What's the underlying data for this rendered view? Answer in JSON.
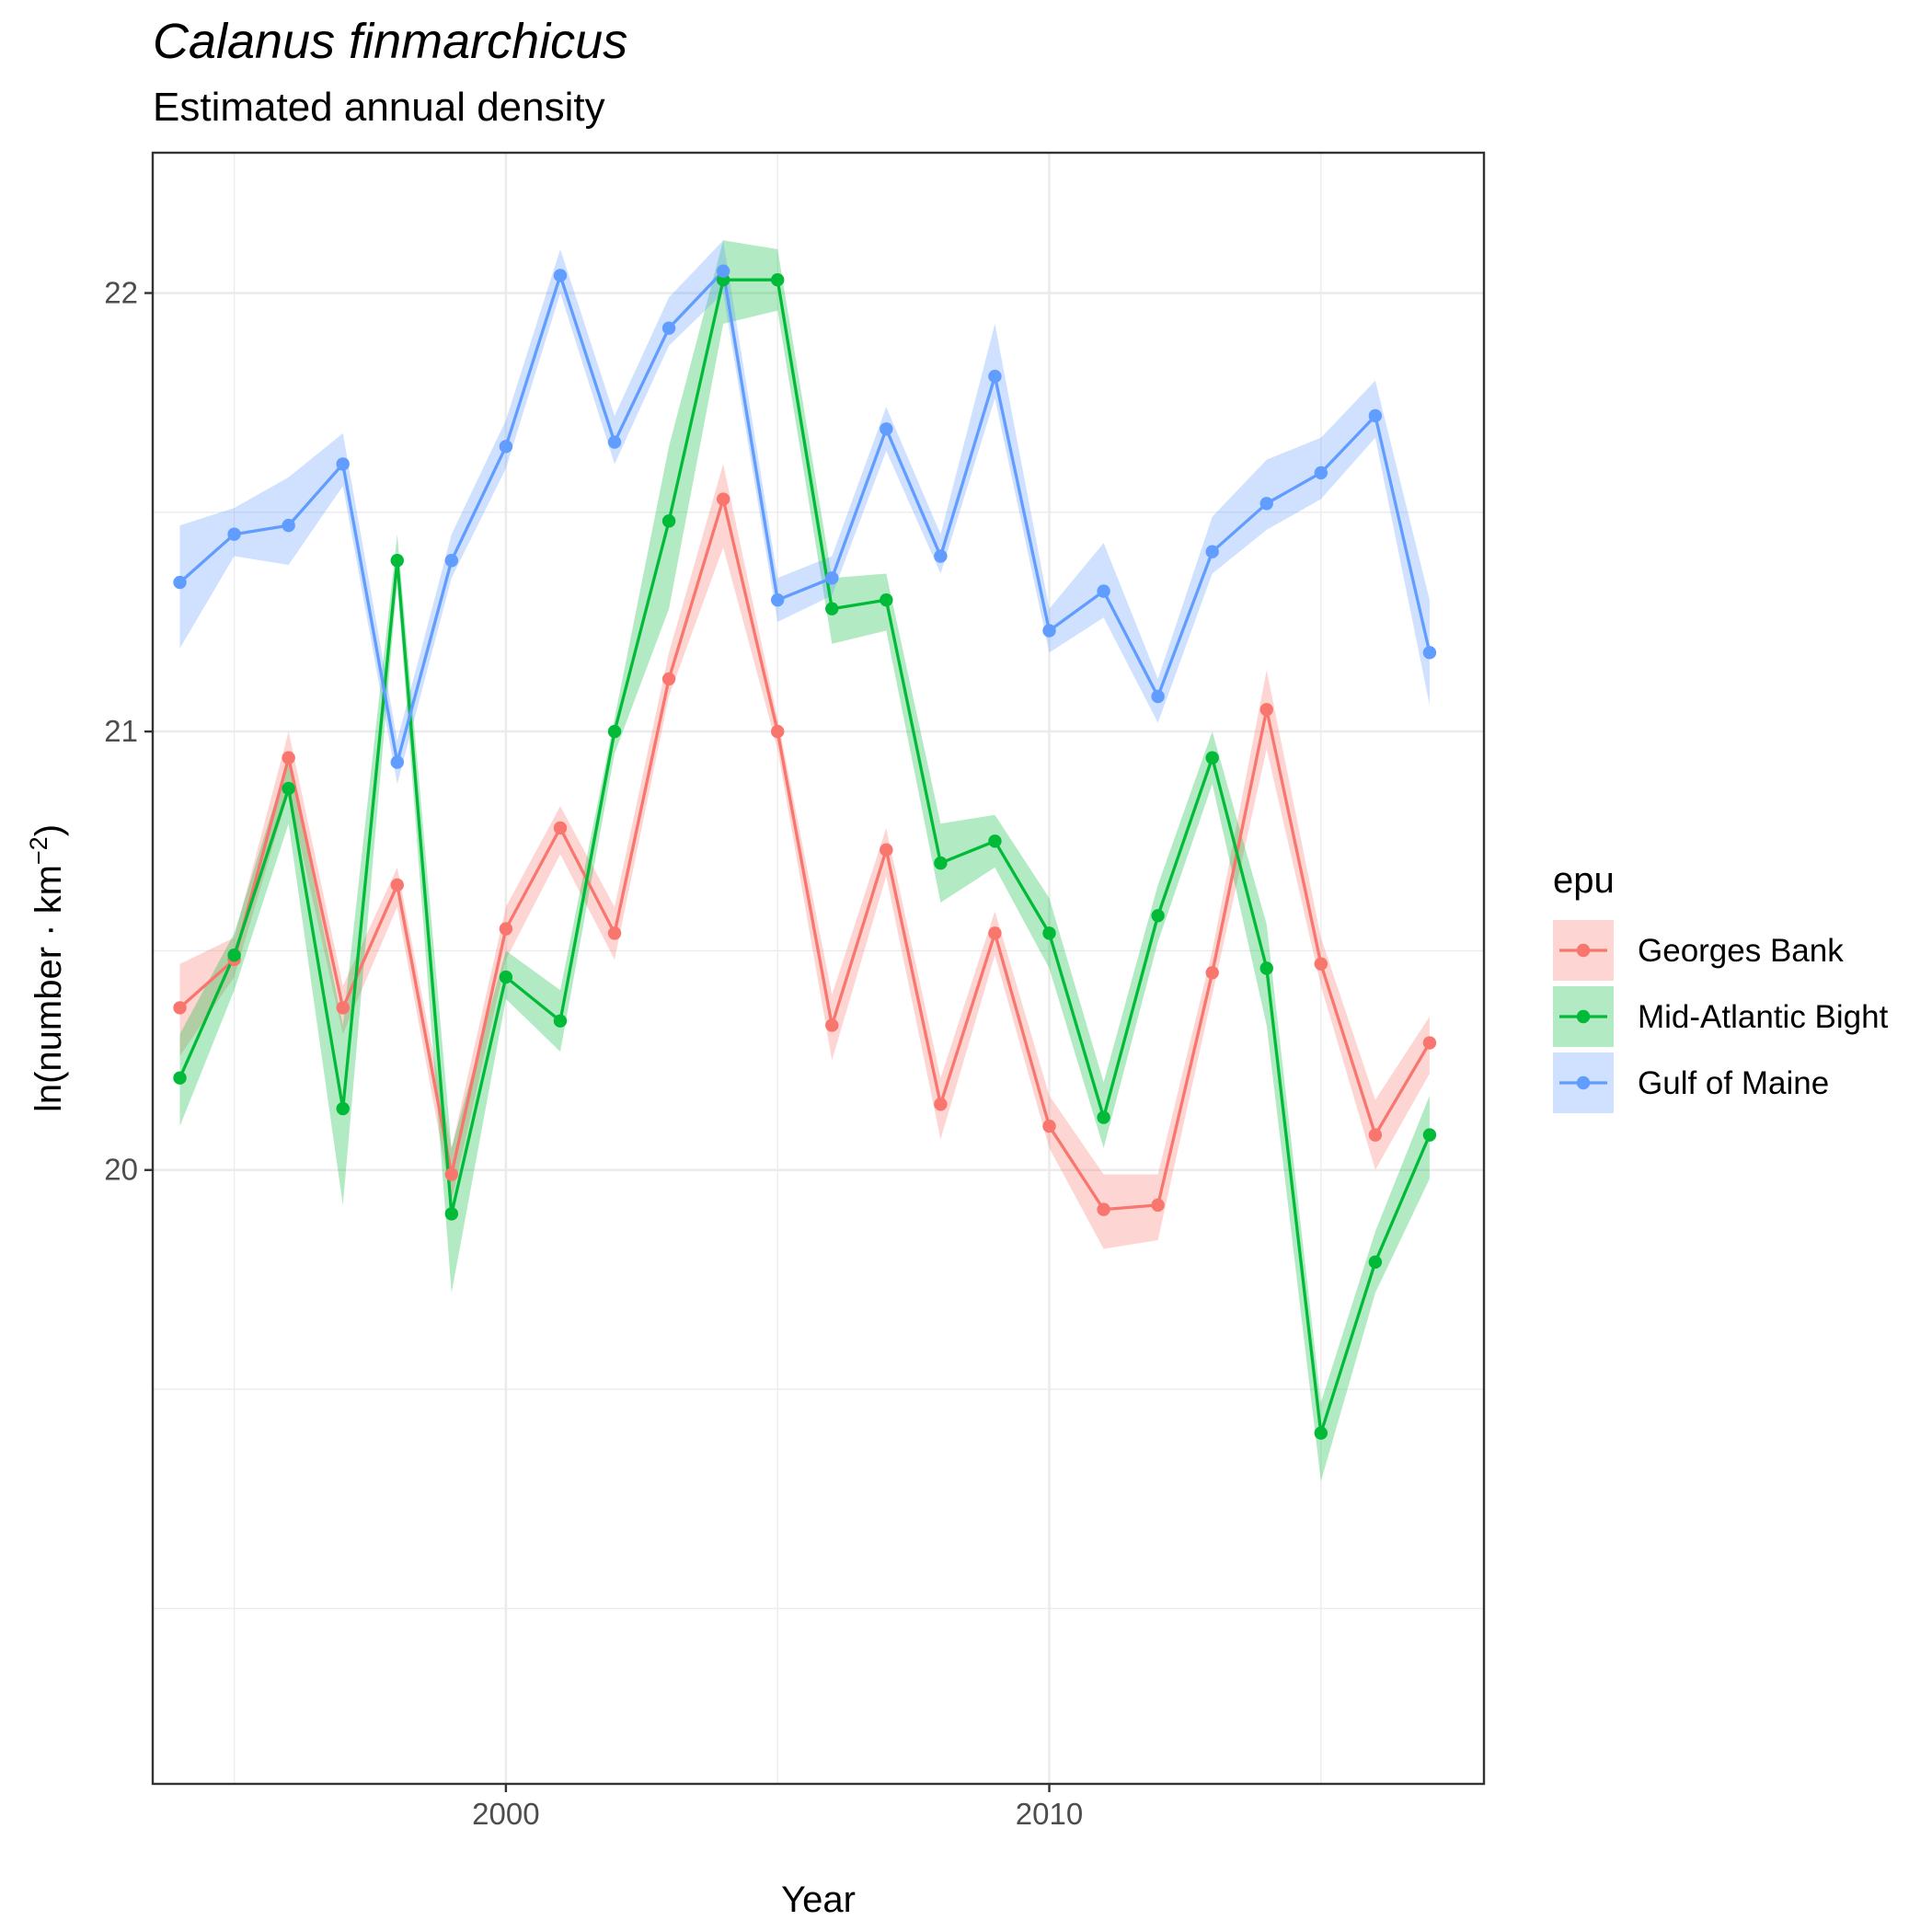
{
  "chart_data": {
    "type": "line",
    "title": "Calanus finmarchicus",
    "subtitle": "Estimated annual density",
    "xlabel": "Year",
    "ylabel_main": "ln(number · km",
    "ylabel_sup": "−2",
    "ylabel_end": ")",
    "xlim": [
      1993.5,
      2018.0
    ],
    "ylim": [
      18.6,
      22.32
    ],
    "x_ticks": [
      2000,
      2010
    ],
    "y_ticks": [
      20,
      21,
      22
    ],
    "legend_title": "epu",
    "legend_position": "right",
    "grid": true,
    "x": [
      1994,
      1995,
      1996,
      1997,
      1998,
      1999,
      2000,
      2001,
      2002,
      2003,
      2004,
      2005,
      2006,
      2007,
      2008,
      2009,
      2010,
      2011,
      2012,
      2013,
      2014,
      2015,
      2016,
      2017
    ],
    "series": [
      {
        "name": "Georges Bank",
        "color": "#F8766D",
        "fill": "#F8766D",
        "values": [
          20.37,
          20.48,
          20.94,
          20.37,
          20.65,
          19.99,
          20.55,
          20.78,
          20.54,
          21.12,
          21.53,
          21.0,
          20.33,
          20.73,
          20.15,
          20.54,
          20.1,
          19.91,
          19.92,
          20.45,
          21.05,
          20.47,
          20.08,
          20.29
        ],
        "lower": [
          20.26,
          20.44,
          20.86,
          20.31,
          20.6,
          19.93,
          20.48,
          20.72,
          20.48,
          21.08,
          21.42,
          20.96,
          20.25,
          20.67,
          20.07,
          20.49,
          20.05,
          19.82,
          19.84,
          20.4,
          20.96,
          20.42,
          20.0,
          20.22
        ],
        "upper": [
          20.47,
          20.53,
          21.0,
          20.42,
          20.69,
          20.05,
          20.6,
          20.83,
          20.6,
          21.18,
          21.61,
          21.03,
          20.4,
          20.78,
          20.21,
          20.59,
          20.17,
          19.99,
          19.99,
          20.5,
          21.14,
          20.53,
          20.16,
          20.35
        ]
      },
      {
        "name": "Mid-Atlantic Bight",
        "color": "#00BA38",
        "fill": "#00BA38",
        "values": [
          20.21,
          20.49,
          20.87,
          20.14,
          21.39,
          19.9,
          20.44,
          20.34,
          21.0,
          21.48,
          22.03,
          22.03,
          21.28,
          21.3,
          20.7,
          20.75,
          20.54,
          20.12,
          20.58,
          20.94,
          20.46,
          19.4,
          19.79,
          20.08
        ],
        "lower": [
          20.1,
          20.41,
          20.79,
          19.92,
          21.34,
          19.72,
          20.39,
          20.27,
          20.95,
          21.28,
          21.93,
          21.96,
          21.2,
          21.23,
          20.61,
          20.69,
          20.46,
          20.05,
          20.52,
          20.88,
          20.33,
          19.29,
          19.72,
          19.98
        ],
        "upper": [
          20.31,
          20.54,
          20.94,
          20.33,
          21.45,
          20.05,
          20.5,
          20.41,
          21.03,
          21.65,
          22.12,
          22.1,
          21.35,
          21.36,
          20.79,
          20.81,
          20.62,
          20.2,
          20.65,
          21.0,
          20.56,
          19.47,
          19.86,
          20.17
        ]
      },
      {
        "name": "Gulf of Maine",
        "color": "#619CFF",
        "fill": "#619CFF",
        "values": [
          21.34,
          21.45,
          21.47,
          21.61,
          20.93,
          21.39,
          21.65,
          22.04,
          21.66,
          21.92,
          22.05,
          21.3,
          21.35,
          21.69,
          21.4,
          21.81,
          21.23,
          21.32,
          21.08,
          21.41,
          21.52,
          21.59,
          21.72,
          21.18
        ],
        "lower": [
          21.19,
          21.4,
          21.38,
          21.56,
          20.88,
          21.35,
          21.6,
          22.0,
          21.61,
          21.88,
          22.0,
          21.25,
          21.31,
          21.64,
          21.36,
          21.76,
          21.18,
          21.26,
          21.02,
          21.36,
          21.46,
          21.53,
          21.67,
          21.06
        ],
        "upper": [
          21.47,
          21.51,
          21.58,
          21.68,
          20.98,
          21.45,
          21.71,
          22.1,
          21.72,
          21.99,
          22.12,
          21.35,
          21.4,
          21.74,
          21.45,
          21.93,
          21.28,
          21.43,
          21.12,
          21.49,
          21.62,
          21.67,
          21.8,
          21.3
        ]
      }
    ]
  }
}
